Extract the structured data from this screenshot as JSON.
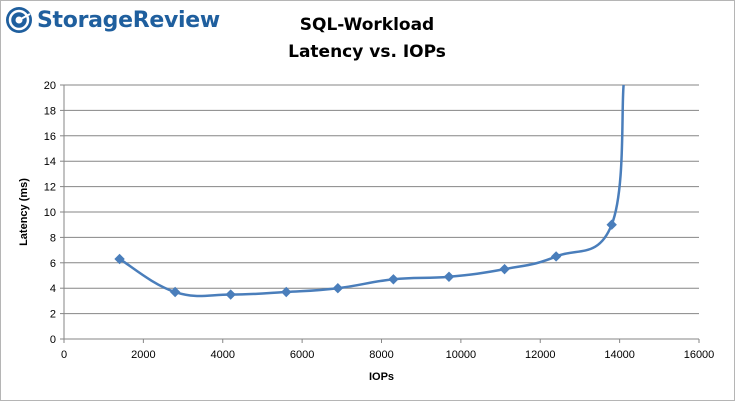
{
  "brand": {
    "name": "StorageReview",
    "icon": "storagereview-logo-icon",
    "color": "#1f5f9e"
  },
  "chart_data": {
    "type": "line",
    "title": [
      "SQL-Workload",
      "Latency vs. IOPs"
    ],
    "xlabel": "IOPs",
    "ylabel": "Latency (ms)",
    "xlim": [
      0,
      16000
    ],
    "ylim": [
      0,
      20
    ],
    "xticks": [
      0,
      2000,
      4000,
      6000,
      8000,
      10000,
      12000,
      14000,
      16000
    ],
    "yticks": [
      0,
      2,
      4,
      6,
      8,
      10,
      12,
      14,
      16,
      18,
      20
    ],
    "grid": "horizontal",
    "legend": "none",
    "series": [
      {
        "color": "#4a7ebb",
        "marker": "diamond",
        "x": [
          1400,
          2800,
          4200,
          5600,
          6900,
          8300,
          9700,
          11100,
          12400,
          13800,
          14100
        ],
        "y": [
          6.3,
          3.7,
          3.5,
          3.7,
          4.0,
          4.7,
          4.9,
          5.5,
          6.5,
          9.0,
          20.0
        ],
        "markers": [
          true,
          true,
          true,
          true,
          true,
          true,
          true,
          true,
          true,
          true,
          false
        ]
      }
    ]
  }
}
